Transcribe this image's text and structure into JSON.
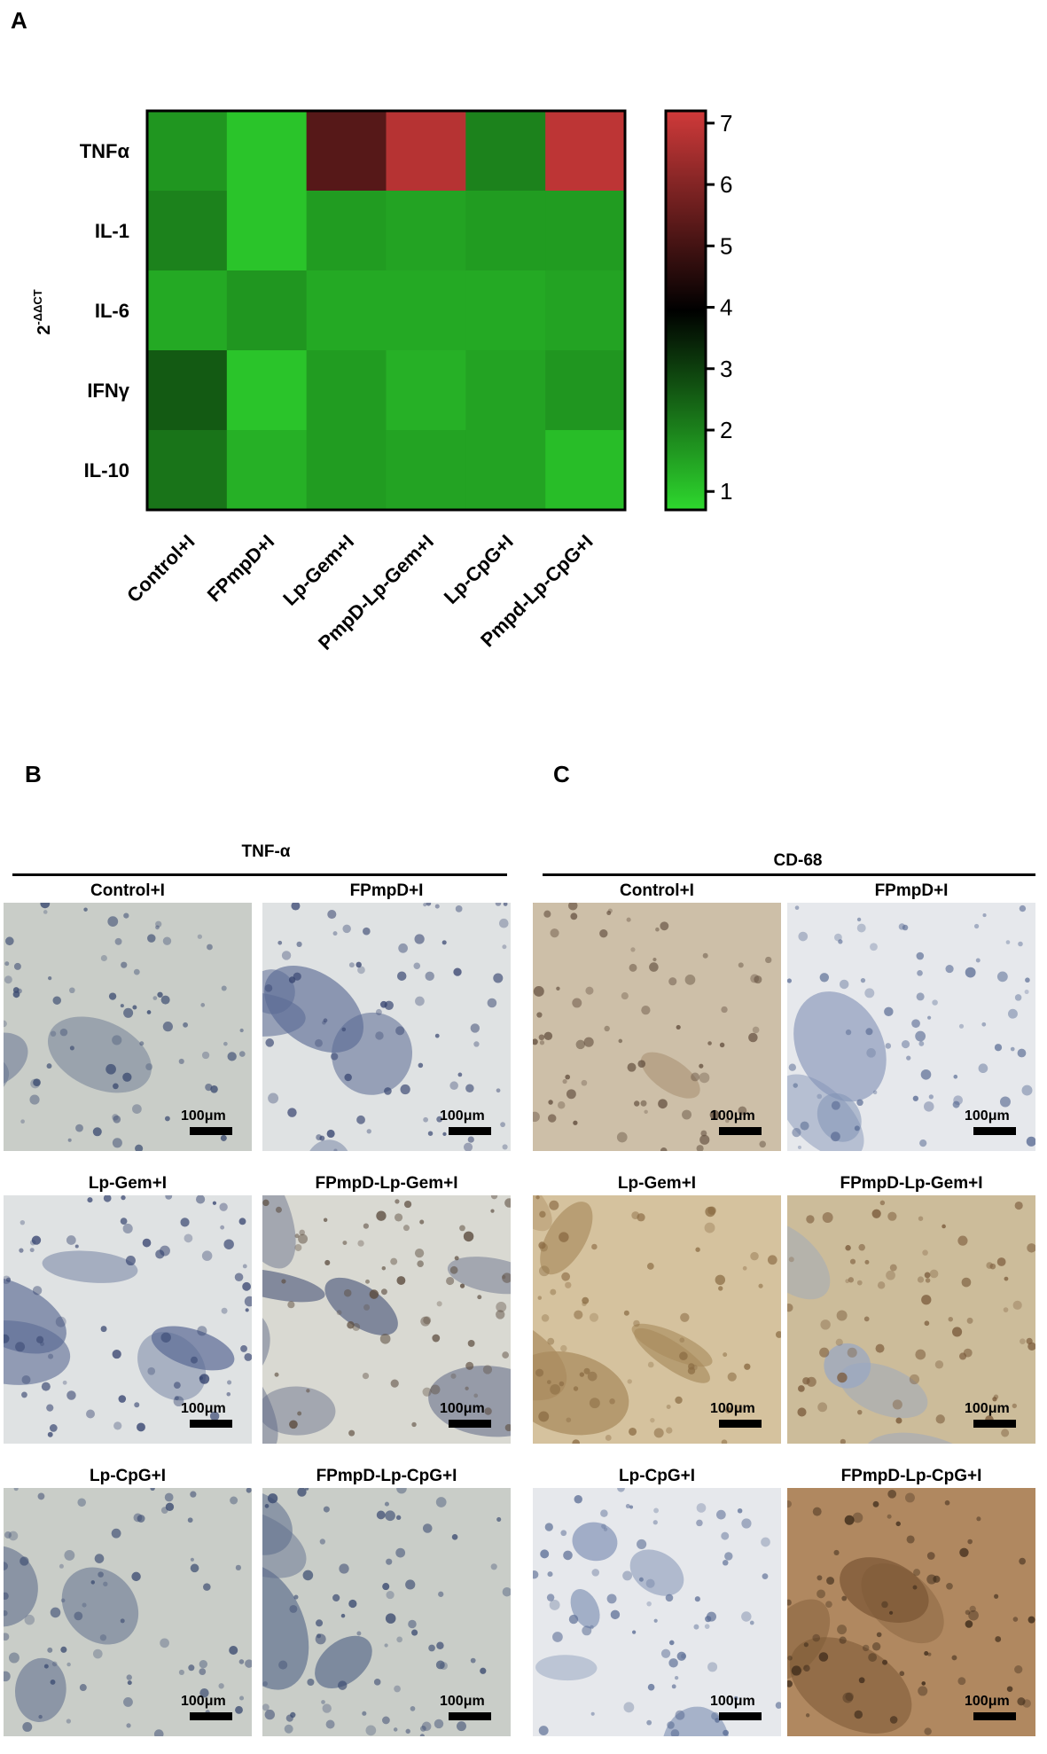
{
  "panels": {
    "a": "A",
    "b": "B",
    "c": "C"
  },
  "chart_data": {
    "type": "heatmap",
    "ylabel": "2-ΔΔCT",
    "ylabel_base": "2",
    "ylabel_exp": "-ΔΔCT",
    "rows": [
      "TNFα",
      "IL-1",
      "IL-6",
      "IFNγ",
      "IL-10"
    ],
    "columns": [
      "Control+I",
      "FPmpD+I",
      "Lp-Gem+I",
      "PmpD-Lp-Gem+I",
      "Lp-CpG+I",
      "Pmpd-Lp-CpG+I"
    ],
    "values": [
      [
        1.7,
        1.0,
        5.3,
        6.8,
        2.0,
        6.9
      ],
      [
        2.0,
        1.0,
        1.6,
        1.5,
        1.6,
        1.6
      ],
      [
        1.4,
        1.7,
        1.4,
        1.4,
        1.4,
        1.5
      ],
      [
        2.6,
        1.0,
        1.6,
        1.3,
        1.5,
        1.7
      ],
      [
        2.2,
        1.3,
        1.6,
        1.5,
        1.5,
        1.1
      ]
    ],
    "colorbar": {
      "min": 0.7,
      "max": 7.2,
      "ticks": [
        1,
        2,
        3,
        4,
        5,
        6,
        7
      ]
    },
    "colors": {
      "low": "#2ed82e",
      "mid": "#000000",
      "high": "#d03a3a"
    }
  },
  "histology": {
    "tnf": {
      "title": "TNF-α",
      "images": [
        {
          "label": "Control+I",
          "scale": "100μm",
          "palette": "blue-light"
        },
        {
          "label": "FPmpD+I",
          "scale": "100μm",
          "palette": "blue-dense"
        },
        {
          "label": "Lp-Gem+I",
          "scale": "100μm",
          "palette": "blue-dense"
        },
        {
          "label": "FPmpD-Lp-Gem+I",
          "scale": "100μm",
          "palette": "blue-brown"
        },
        {
          "label": "Lp-CpG+I",
          "scale": "100μm",
          "palette": "blue-light"
        },
        {
          "label": "FPmpD-Lp-CpG+I",
          "scale": "100μm",
          "palette": "blue-light"
        }
      ]
    },
    "cd68": {
      "title": "CD-68",
      "images": [
        {
          "label": "Control+I",
          "scale": "100μm",
          "palette": "brown-light"
        },
        {
          "label": "FPmpD+I",
          "scale": "100μm",
          "palette": "blue-pale"
        },
        {
          "label": "Lp-Gem+I",
          "scale": "100μm",
          "palette": "tan"
        },
        {
          "label": "FPmpD-Lp-Gem+I",
          "scale": "100μm",
          "palette": "tan-rings"
        },
        {
          "label": "Lp-CpG+I",
          "scale": "100μm",
          "palette": "blue-pale"
        },
        {
          "label": "FPmpD-Lp-CpG+I",
          "scale": "100μm",
          "palette": "brown-dark"
        }
      ]
    }
  }
}
